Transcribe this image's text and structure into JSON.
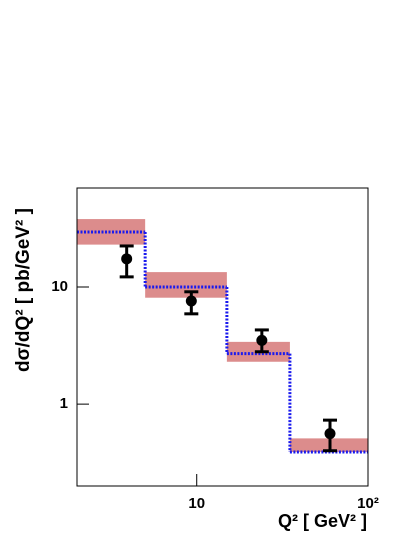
{
  "chart_data": {
    "type": "step",
    "x_label": "Q² [ GeV² ]",
    "y_label": "dσ/dQ² [ pb/GeV² ]",
    "log_x": true,
    "log_y": true,
    "xlim": [
      2,
      100
    ],
    "ylim": [
      0.2,
      70
    ],
    "xticks": [
      10,
      {
        "value": 100,
        "label": "10²"
      }
    ],
    "yticks": [
      1,
      10
    ],
    "bins": [
      2,
      5,
      15,
      35,
      100
    ],
    "band": {
      "color": "#dc8c8c",
      "low": [
        23,
        8.1,
        2.3,
        0.39
      ],
      "high": [
        38,
        13.4,
        3.4,
        0.51
      ]
    },
    "prediction": {
      "color": "#1a1aee",
      "values": [
        29.5,
        10,
        2.7,
        0.39
      ]
    },
    "data": {
      "color": "#000000",
      "x": [
        3.9,
        9.3,
        24,
        60
      ],
      "values": [
        17.4,
        7.6,
        3.5,
        0.56
      ],
      "low": [
        12.2,
        5.9,
        2.8,
        0.4
      ],
      "high": [
        22.4,
        9.1,
        4.3,
        0.73
      ]
    }
  }
}
